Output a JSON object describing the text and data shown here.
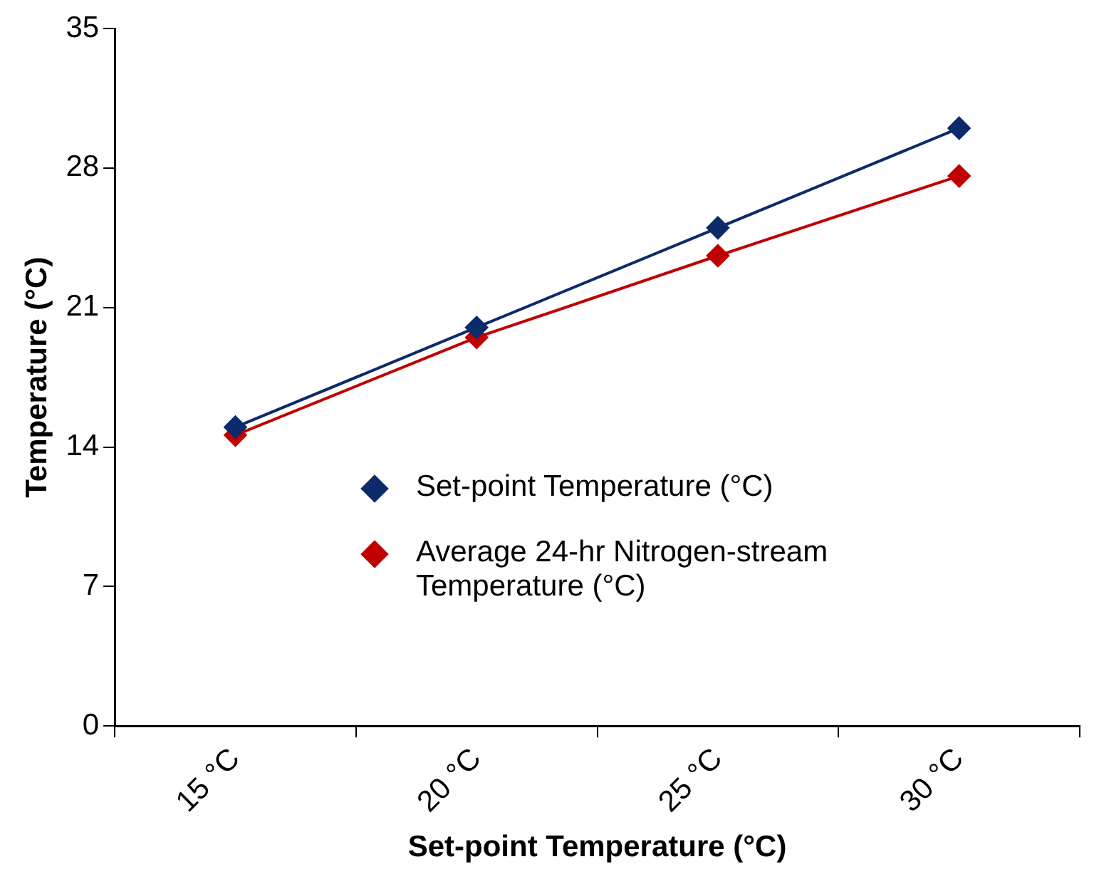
{
  "chart_data": {
    "type": "line",
    "xlabel": "Set-point Temperature (°C)",
    "ylabel": "Temperature (°C)",
    "categories": [
      "15 °C",
      "20 °C",
      "25 °C",
      "30 °C"
    ],
    "series": [
      {
        "name": "Set-point Temperature (°C)",
        "color": "#0d2a6b",
        "values": [
          15,
          20,
          25,
          30
        ]
      },
      {
        "name": "Average 24-hr Nitrogen-stream Temperature (°C)",
        "color": "#c00000",
        "values": [
          14.6,
          19.5,
          23.6,
          27.6
        ]
      }
    ],
    "ylim": [
      0,
      35
    ],
    "yticks": [
      0,
      7,
      14,
      21,
      28,
      35
    ],
    "grid": false,
    "legend": "bottom right",
    "marker": "diamond",
    "line_style": "solid"
  }
}
